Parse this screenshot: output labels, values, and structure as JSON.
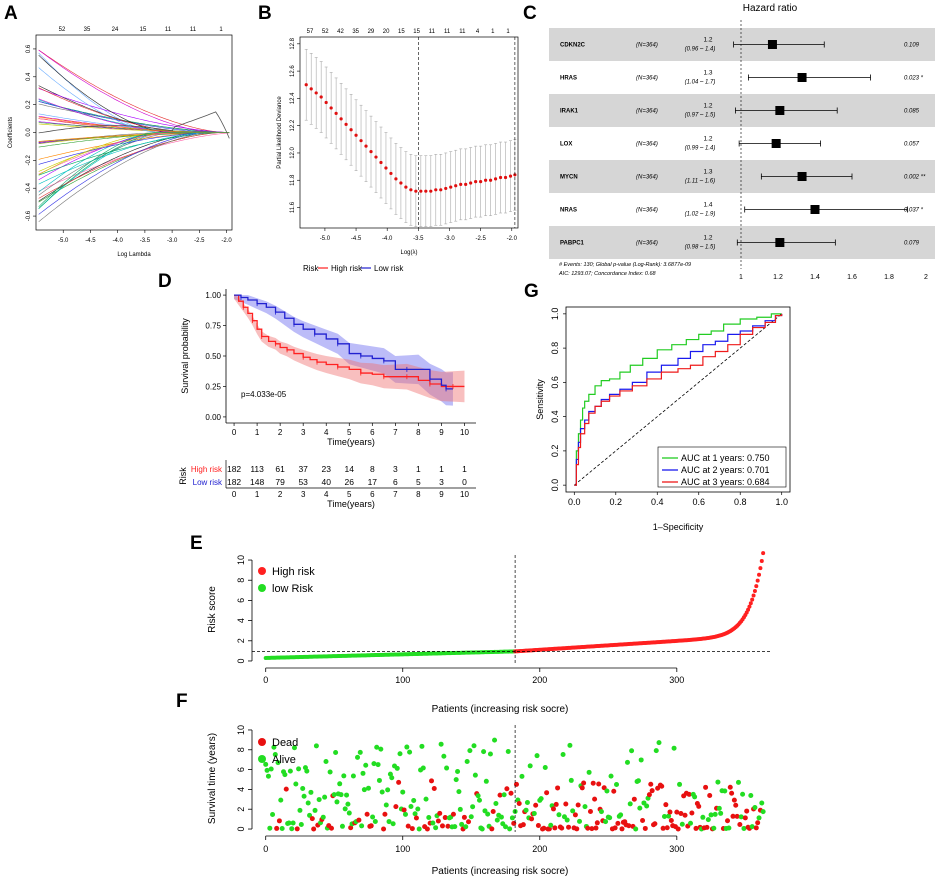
{
  "figure": {
    "panel_labels": [
      "A",
      "B",
      "C",
      "D",
      "E",
      "F",
      "G"
    ]
  },
  "colors": {
    "high_risk": "#ff2020",
    "low_risk": "#2020d0",
    "low_green": "#22dd22",
    "dead": "#e81010",
    "alive": "#22dd22",
    "grey_band": "#d6d6d6"
  },
  "chart_data": [
    {
      "panel": "A",
      "type": "line",
      "title": "",
      "xlabel": "Log Lambda",
      "ylabel": "Coefficients",
      "xlim": [
        -5.5,
        -1.9
      ],
      "ylim": [
        -0.7,
        0.7
      ],
      "xticks": [
        "-5.0",
        "-4.5",
        "-4.0",
        "-3.5",
        "-3.0",
        "-2.5",
        "-2.0"
      ],
      "yticks": [
        "-0.6",
        "-0.4",
        "-0.2",
        "0.0",
        "0.2",
        "0.4",
        "0.6"
      ],
      "top_ticks": [
        "52",
        "35",
        "24",
        "15",
        "11",
        "11",
        "1"
      ],
      "series_note": "coefficient paths of many genes shrinking to 0 as lambda increases"
    },
    {
      "panel": "B",
      "type": "scatter",
      "xlabel": "Log(λ)",
      "ylabel": "Partial Likelihood Deviance",
      "xlim": [
        -5.4,
        -1.9
      ],
      "ylim": [
        11.45,
        12.85
      ],
      "xticks": [
        "-5.0",
        "-4.5",
        "-4.0",
        "-3.5",
        "-3.0",
        "-2.5",
        "-2.0"
      ],
      "yticks": [
        "11.6",
        "11.8",
        "12.0",
        "12.2",
        "12.4",
        "12.6",
        "12.8"
      ],
      "top_ticks": [
        "57",
        "52",
        "42",
        "35",
        "29",
        "20",
        "15",
        "15",
        "11",
        "11",
        "11",
        "4",
        "1",
        "1"
      ],
      "vlines": [
        -3.5,
        -1.95
      ],
      "x": [
        -5.3,
        -5.22,
        -5.14,
        -5.06,
        -4.98,
        -4.9,
        -4.82,
        -4.74,
        -4.66,
        -4.58,
        -4.5,
        -4.42,
        -4.34,
        -4.26,
        -4.18,
        -4.1,
        -4.02,
        -3.94,
        -3.86,
        -3.78,
        -3.7,
        -3.62,
        -3.54,
        -3.46,
        -3.38,
        -3.3,
        -3.22,
        -3.14,
        -3.06,
        -2.98,
        -2.9,
        -2.82,
        -2.74,
        -2.66,
        -2.58,
        -2.5,
        -2.42,
        -2.34,
        -2.26,
        -2.18,
        -2.1,
        -2.02,
        -1.95
      ],
      "values": [
        12.5,
        12.47,
        12.44,
        12.41,
        12.37,
        12.33,
        12.29,
        12.25,
        12.21,
        12.17,
        12.13,
        12.09,
        12.05,
        12.01,
        11.97,
        11.93,
        11.89,
        11.85,
        11.81,
        11.78,
        11.75,
        11.73,
        11.72,
        11.72,
        11.72,
        11.72,
        11.73,
        11.73,
        11.74,
        11.75,
        11.76,
        11.77,
        11.77,
        11.78,
        11.79,
        11.79,
        11.8,
        11.8,
        11.81,
        11.82,
        11.82,
        11.83,
        11.84
      ],
      "error": 0.26
    },
    {
      "panel": "C",
      "type": "forest",
      "title": "Hazard ratio",
      "rows": [
        {
          "gene": "CDKN2C",
          "n": "(N=364)",
          "hr": "1.2",
          "ci": "(0.96 – 1.4)",
          "hr_v": 1.17,
          "lo": 0.96,
          "hi": 1.45,
          "p": "0.109"
        },
        {
          "gene": "HRAS",
          "n": "(N=364)",
          "hr": "1.3",
          "ci": "(1.04 – 1.7)",
          "hr_v": 1.33,
          "lo": 1.04,
          "hi": 1.7,
          "p": "0.023 *"
        },
        {
          "gene": "IRAK1",
          "n": "(N=364)",
          "hr": "1.2",
          "ci": "(0.97 – 1.5)",
          "hr_v": 1.21,
          "lo": 0.97,
          "hi": 1.52,
          "p": "0.085"
        },
        {
          "gene": "LOX",
          "n": "(N=364)",
          "hr": "1.2",
          "ci": "(0.99 – 1.4)",
          "hr_v": 1.19,
          "lo": 0.99,
          "hi": 1.43,
          "p": "0.057"
        },
        {
          "gene": "MYCN",
          "n": "(N=364)",
          "hr": "1.3",
          "ci": "(1.11 – 1.6)",
          "hr_v": 1.33,
          "lo": 1.11,
          "hi": 1.6,
          "p": "0.002 **"
        },
        {
          "gene": "NRAS",
          "n": "(N=364)",
          "hr": "1.4",
          "ci": "(1.02 – 1.9)",
          "hr_v": 1.4,
          "lo": 1.02,
          "hi": 1.9,
          "p": "0.037 *"
        },
        {
          "gene": "PABPC1",
          "n": "(N=364)",
          "hr": "1.2",
          "ci": "(0.98 – 1.5)",
          "hr_v": 1.21,
          "lo": 0.98,
          "hi": 1.51,
          "p": "0.079"
        }
      ],
      "axis_ticks": [
        "1",
        "1.2",
        "1.4",
        "1.6",
        "1.8",
        "2"
      ],
      "footer1": "# Events: 130; Global p-value (Log-Rank): 3.6877e-09",
      "footer2": "AIC: 1293.07; Concordance Index: 0.68"
    },
    {
      "panel": "D",
      "type": "line",
      "ylabel": "Survival probability",
      "xlabel": "Time(years)",
      "legend_title": "Risk",
      "legend": [
        "High risk",
        "Low risk"
      ],
      "pvalue": "p=4.033e-05",
      "yticks": [
        "0.00",
        "0.25",
        "0.50",
        "0.75",
        "1.00"
      ],
      "xticks": [
        "0",
        "1",
        "2",
        "3",
        "4",
        "5",
        "6",
        "7",
        "8",
        "9",
        "10"
      ],
      "xlim": [
        0,
        10.5
      ],
      "ylim": [
        0,
        1
      ],
      "high_x": [
        0,
        0.2,
        0.4,
        0.6,
        0.8,
        1,
        1.2,
        1.5,
        1.8,
        2,
        2.3,
        2.6,
        3,
        3.3,
        3.6,
        4,
        4.5,
        5,
        5.5,
        6,
        6.5,
        7,
        7.5,
        8,
        8.5,
        9,
        9.5,
        10
      ],
      "high_y": [
        1,
        0.95,
        0.9,
        0.85,
        0.79,
        0.72,
        0.66,
        0.62,
        0.6,
        0.57,
        0.55,
        0.52,
        0.49,
        0.47,
        0.45,
        0.43,
        0.41,
        0.39,
        0.36,
        0.35,
        0.33,
        0.33,
        0.33,
        0.3,
        0.27,
        0.25,
        0.25,
        0.25
      ],
      "low_x": [
        0,
        0.3,
        0.6,
        1,
        1.4,
        1.8,
        2.2,
        2.6,
        3,
        3.5,
        4,
        4.5,
        5,
        5.5,
        6,
        6.5,
        7,
        7.5,
        8,
        8.5,
        9,
        9.2,
        9.5
      ],
      "low_y": [
        1,
        0.98,
        0.96,
        0.93,
        0.9,
        0.86,
        0.81,
        0.76,
        0.72,
        0.68,
        0.64,
        0.6,
        0.52,
        0.5,
        0.48,
        0.46,
        0.39,
        0.39,
        0.39,
        0.31,
        0.26,
        0.23,
        0.23
      ],
      "risk_table": {
        "label": "Risk",
        "rows": [
          {
            "name": "High risk",
            "counts": [
              "182",
              "113",
              "61",
              "37",
              "23",
              "14",
              "8",
              "3",
              "1",
              "1",
              "1"
            ]
          },
          {
            "name": "Low risk",
            "counts": [
              "182",
              "148",
              "79",
              "53",
              "40",
              "26",
              "17",
              "6",
              "5",
              "3",
              "0"
            ]
          }
        ],
        "xlabel": "Time(years)"
      }
    },
    {
      "panel": "G",
      "type": "line",
      "xlabel": "1–Specificity",
      "ylabel": "Sensitivity",
      "xticks": [
        "0.0",
        "0.2",
        "0.4",
        "0.6",
        "0.8",
        "1.0"
      ],
      "yticks": [
        "0.0",
        "0.2",
        "0.4",
        "0.6",
        "0.8",
        "1.0"
      ],
      "xlim": [
        0,
        1
      ],
      "ylim": [
        0,
        1
      ],
      "series": [
        {
          "name": "AUC at 1 years: 0.750",
          "color": "#22cc22",
          "x": [
            0,
            0.01,
            0.02,
            0.03,
            0.04,
            0.05,
            0.07,
            0.1,
            0.13,
            0.17,
            0.22,
            0.27,
            0.33,
            0.4,
            0.47,
            0.54,
            0.6,
            0.66,
            0.72,
            0.8,
            0.88,
            0.95,
            1
          ],
          "y": [
            0,
            0.2,
            0.3,
            0.38,
            0.45,
            0.49,
            0.53,
            0.58,
            0.61,
            0.62,
            0.66,
            0.7,
            0.74,
            0.79,
            0.82,
            0.85,
            0.88,
            0.9,
            0.94,
            0.97,
            0.98,
            1,
            1
          ]
        },
        {
          "name": "AUC at 2 years: 0.701",
          "color": "#1a1aee",
          "x": [
            0,
            0.01,
            0.02,
            0.03,
            0.05,
            0.07,
            0.1,
            0.13,
            0.17,
            0.22,
            0.28,
            0.35,
            0.42,
            0.5,
            0.56,
            0.62,
            0.68,
            0.74,
            0.8,
            0.86,
            0.92,
            0.97,
            1
          ],
          "y": [
            0,
            0.15,
            0.25,
            0.33,
            0.38,
            0.43,
            0.46,
            0.5,
            0.53,
            0.56,
            0.6,
            0.66,
            0.7,
            0.74,
            0.78,
            0.82,
            0.84,
            0.88,
            0.9,
            0.93,
            0.96,
            0.99,
            1
          ]
        },
        {
          "name": "AUC at 3 years: 0.684",
          "color": "#ee1a1a",
          "x": [
            0,
            0.01,
            0.02,
            0.03,
            0.05,
            0.07,
            0.1,
            0.13,
            0.17,
            0.22,
            0.28,
            0.35,
            0.42,
            0.5,
            0.56,
            0.62,
            0.68,
            0.74,
            0.8,
            0.86,
            0.92,
            0.97,
            1
          ],
          "y": [
            0,
            0.12,
            0.22,
            0.3,
            0.36,
            0.42,
            0.46,
            0.49,
            0.52,
            0.55,
            0.58,
            0.62,
            0.66,
            0.68,
            0.7,
            0.75,
            0.78,
            0.82,
            0.88,
            0.92,
            0.95,
            0.99,
            1
          ]
        }
      ]
    },
    {
      "panel": "E",
      "type": "scatter",
      "xlabel": "Patients (increasing risk socre)",
      "ylabel": "Risk score",
      "legend": [
        "High risk",
        "low Risk"
      ],
      "xticks": [
        "0",
        "100",
        "200",
        "300"
      ],
      "yticks": [
        "0",
        "2",
        "4",
        "6",
        "8",
        "10"
      ],
      "xlim": [
        -10,
        368
      ],
      "ylim": [
        -0.3,
        10.5
      ],
      "cutoff_patient": 182,
      "cutoff_score": 0.95,
      "n": 364
    },
    {
      "panel": "F",
      "type": "scatter",
      "xlabel": "Patients (increasing risk socre)",
      "ylabel": "Survival time (years)",
      "legend": [
        "Dead",
        "Alive"
      ],
      "xticks": [
        "0",
        "100",
        "200",
        "300"
      ],
      "yticks": [
        "0",
        "2",
        "4",
        "6",
        "8",
        "10"
      ],
      "xlim": [
        -10,
        368
      ],
      "ylim": [
        -0.3,
        10.5
      ],
      "cutoff_patient": 182,
      "n": 364
    }
  ]
}
